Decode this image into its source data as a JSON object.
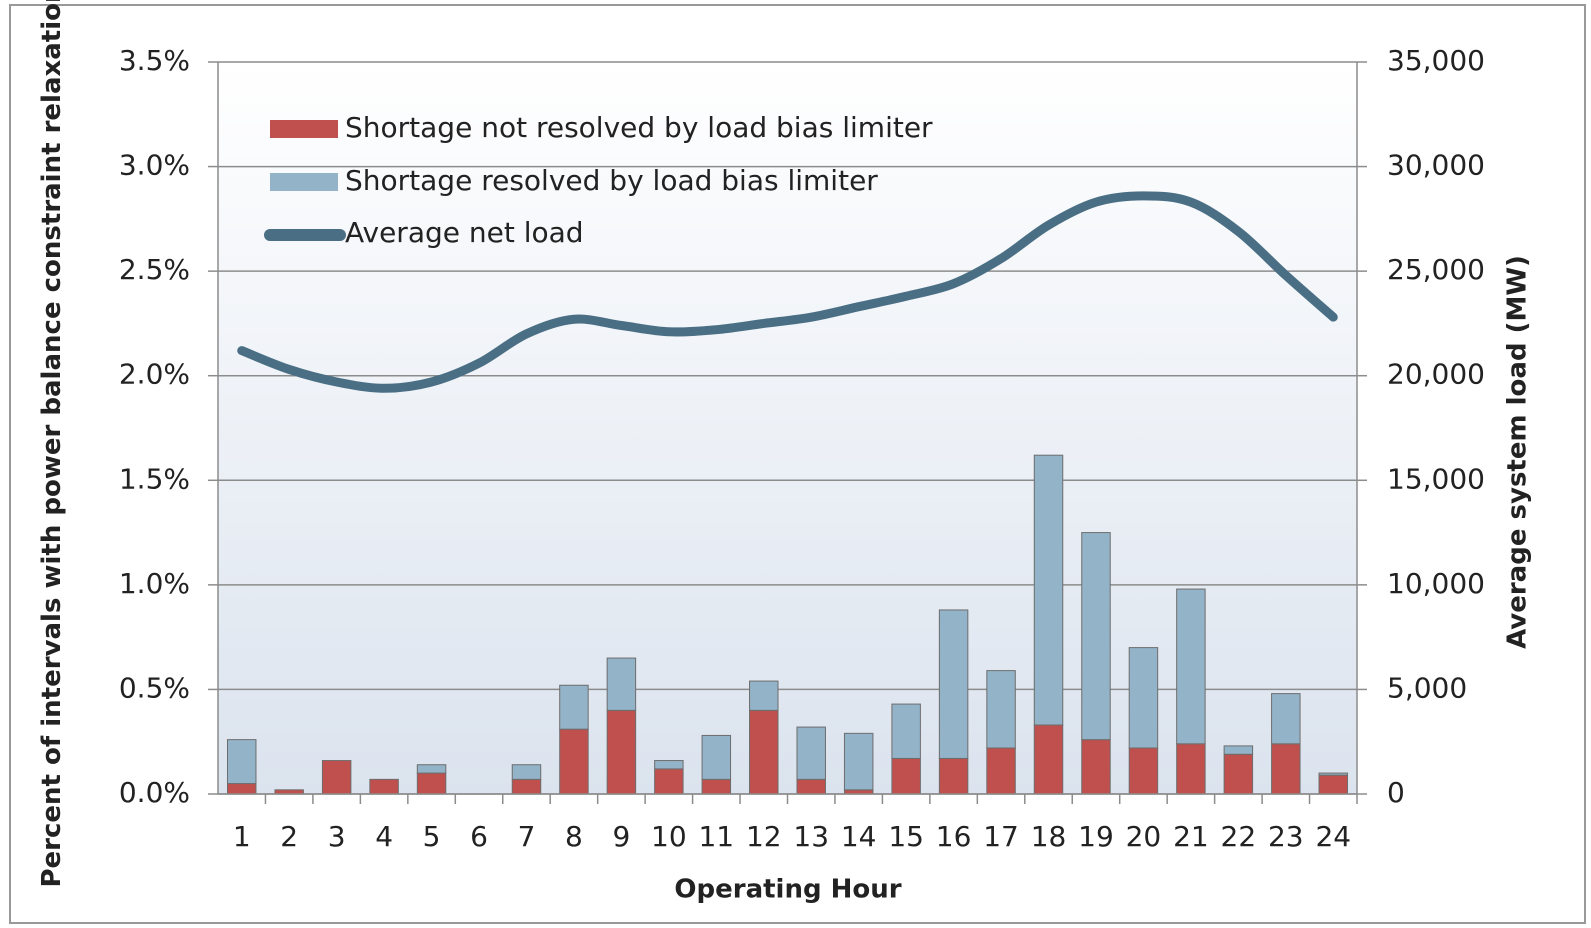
{
  "chart_data": {
    "type": "bar",
    "stacked": true,
    "x_label": "Operating Hour",
    "y_label": "Percent of intervals with power balance constraint relaxation",
    "y2_label": "Average system load (MW)",
    "categories": [
      "1",
      "2",
      "3",
      "4",
      "5",
      "6",
      "7",
      "8",
      "9",
      "10",
      "11",
      "12",
      "13",
      "14",
      "15",
      "16",
      "17",
      "18",
      "19",
      "20",
      "21",
      "22",
      "23",
      "24"
    ],
    "series": [
      {
        "name": "Shortage not resolved by load bias limiter",
        "type": "bar",
        "color": "#c0504d",
        "values": [
          0.05,
          0.02,
          0.16,
          0.07,
          0.1,
          0,
          0.07,
          0.31,
          0.4,
          0.12,
          0.07,
          0.4,
          0.07,
          0.02,
          0.17,
          0.17,
          0.22,
          0.33,
          0.26,
          0.22,
          0.24,
          0.19,
          0.24,
          0.09
        ]
      },
      {
        "name": "Shortage resolved by load bias limiter",
        "type": "bar",
        "color": "#93b3c8",
        "values": [
          0.21,
          0,
          0,
          0,
          0.04,
          0,
          0.07,
          0.21,
          0.25,
          0.04,
          0.21,
          0.14,
          0.25,
          0.27,
          0.26,
          0.71,
          0.37,
          1.29,
          0.99,
          0.48,
          0.74,
          0.04,
          0.24,
          0.01
        ]
      },
      {
        "name": "Average net load",
        "type": "line",
        "axis": "y2",
        "color": "#4a6f85",
        "values": [
          21200,
          20300,
          19700,
          19400,
          19700,
          20600,
          22000,
          22700,
          22400,
          22100,
          22200,
          22500,
          22800,
          23300,
          23800,
          24400,
          25600,
          27200,
          28300,
          28600,
          28300,
          26900,
          24800,
          22800
        ]
      }
    ],
    "ylim": [
      0,
      3.5
    ],
    "yticks": [
      {
        "value": 0,
        "label": "0.0%"
      },
      {
        "value": 0.5,
        "label": "0.5%"
      },
      {
        "value": 1,
        "label": "1.0%"
      },
      {
        "value": 1.5,
        "label": "1.5%"
      },
      {
        "value": 2,
        "label": "2.0%"
      },
      {
        "value": 2.5,
        "label": "2.5%"
      },
      {
        "value": 3,
        "label": "3.0%"
      },
      {
        "value": 3.5,
        "label": "3.5%"
      }
    ],
    "y2lim": [
      0,
      35000
    ],
    "y2ticks": [
      0,
      {
        "value": 5000,
        "label": "5,000"
      },
      {
        "value": 10000,
        "label": "10,000"
      },
      {
        "value": 15000,
        "label": "15,000"
      },
      {
        "value": 20000,
        "label": "20,000"
      },
      {
        "value": 25000,
        "label": "25,000"
      },
      {
        "value": 30000,
        "label": "30,000"
      },
      {
        "value": 35000,
        "label": "35,000"
      }
    ],
    "grid": true,
    "legend": "top-left"
  }
}
